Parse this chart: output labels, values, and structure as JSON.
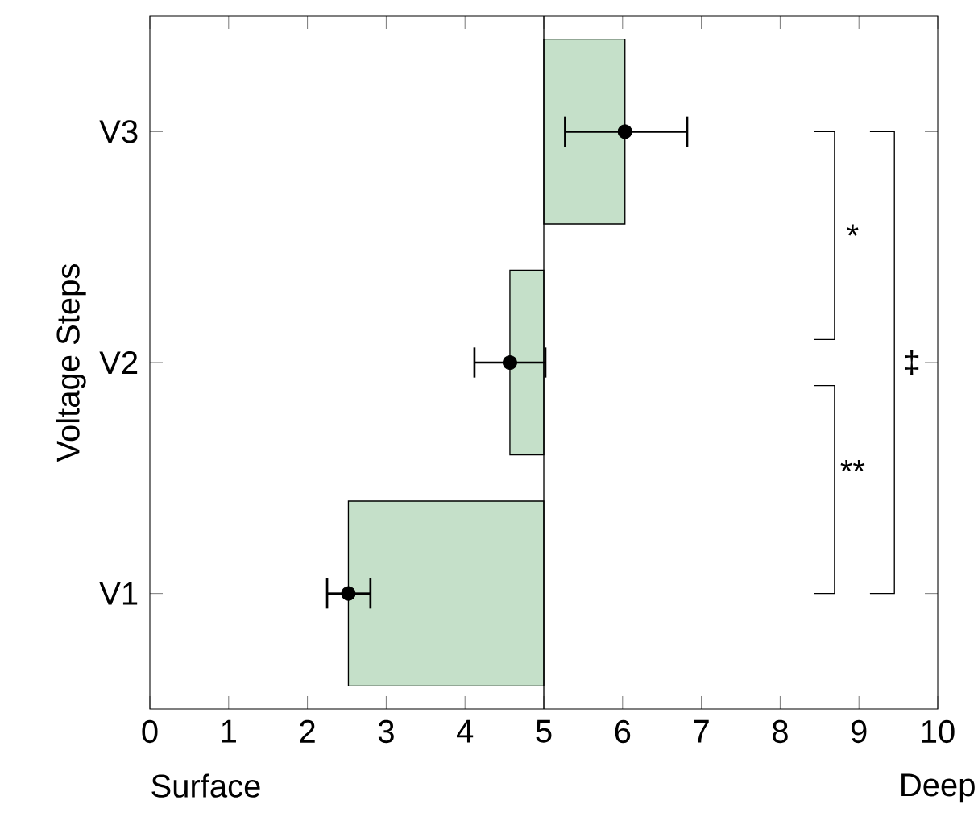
{
  "chart_data": {
    "type": "bar",
    "orientation": "horizontal",
    "ylabel": "Voltage Steps",
    "marker": "circle",
    "categories": [
      "V3",
      "V2",
      "V1"
    ],
    "xlim": [
      0,
      10
    ],
    "xticks": [
      0,
      1,
      2,
      3,
      4,
      5,
      6,
      7,
      8,
      9,
      10
    ],
    "series": [
      {
        "color": "#c5e0c9",
        "base": [
          5,
          5,
          5
        ],
        "values": [
          1.03,
          -0.43,
          -2.48
        ]
      },
      {
        "type": "scatter",
        "color": "#000000",
        "values": [
          6.03,
          4.57,
          2.52
        ],
        "errors": [
          [
            5.27,
            6.82
          ],
          [
            4.12,
            5.02
          ],
          [
            2.25,
            2.8
          ]
        ]
      }
    ],
    "ref_lines": [
      {
        "axis": "x",
        "value": 5
      }
    ],
    "annotations": [
      "Surface",
      "Deep",
      "*",
      "**",
      "‡"
    ]
  }
}
